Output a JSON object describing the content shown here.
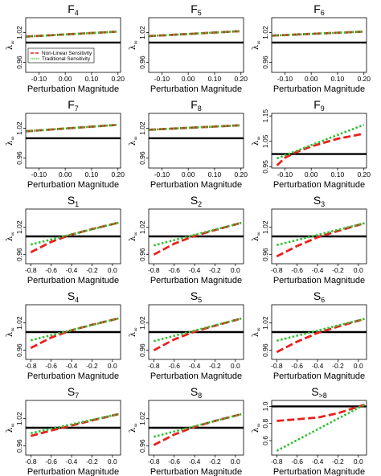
{
  "figure": {
    "xlabel": "Perturbation Magnitude",
    "ylabel_base": "λ",
    "ylabel_sub": "∞",
    "legend": {
      "entries": [
        {
          "label": "Non-Linear Sensitivity",
          "color": "#e8211c",
          "style": "dashed"
        },
        {
          "label": "Traditional Sensitivity",
          "color": "#2fbf2f",
          "style": "dotted"
        }
      ],
      "location": "inside panel F4, lower-left"
    },
    "reference_line": {
      "y": 1.0,
      "color": "#000000"
    }
  },
  "chart_data": [
    {
      "type": "line",
      "title": "F",
      "sub": "4",
      "xlim": [
        -0.15,
        0.21
      ],
      "ylim": [
        0.94,
        1.05
      ],
      "xticks": [
        -0.1,
        0.0,
        0.1,
        0.2
      ],
      "xtick_labels": [
        "-0.10",
        "0.00",
        "0.10",
        "0.20"
      ],
      "yticks": [
        0.96,
        1.02
      ],
      "ytick_labels": [
        "0.96",
        "1.02"
      ],
      "ref_y": 1.0,
      "show_legend": true,
      "series": [
        {
          "name": "Non-Linear Sensitivity",
          "x": [
            -0.15,
            0.2
          ],
          "y": [
            1.012,
            1.022
          ]
        },
        {
          "name": "Traditional Sensitivity",
          "x": [
            -0.15,
            0.2
          ],
          "y": [
            1.012,
            1.022
          ]
        }
      ]
    },
    {
      "type": "line",
      "title": "F",
      "sub": "5",
      "xlim": [
        -0.15,
        0.21
      ],
      "ylim": [
        0.94,
        1.05
      ],
      "xticks": [
        -0.1,
        0.0,
        0.1,
        0.2
      ],
      "xtick_labels": [
        "-0.10",
        "0.00",
        "0.10",
        "0.20"
      ],
      "yticks": [
        0.96,
        1.02
      ],
      "ytick_labels": [
        "0.96",
        "1.02"
      ],
      "ref_y": 1.0,
      "series": [
        {
          "name": "Non-Linear Sensitivity",
          "x": [
            -0.15,
            0.2
          ],
          "y": [
            1.013,
            1.023
          ]
        },
        {
          "name": "Traditional Sensitivity",
          "x": [
            -0.15,
            0.2
          ],
          "y": [
            1.013,
            1.023
          ]
        }
      ]
    },
    {
      "type": "line",
      "title": "F",
      "sub": "6",
      "xlim": [
        -0.15,
        0.21
      ],
      "ylim": [
        0.94,
        1.05
      ],
      "xticks": [
        -0.1,
        0.0,
        0.1,
        0.2
      ],
      "xtick_labels": [
        "-0.10",
        "0.00",
        "0.10",
        "0.20"
      ],
      "yticks": [
        0.96,
        1.02
      ],
      "ytick_labels": [
        "0.96",
        "1.02"
      ],
      "ref_y": 1.0,
      "series": [
        {
          "name": "Non-Linear Sensitivity",
          "x": [
            -0.15,
            0.2
          ],
          "y": [
            1.014,
            1.022
          ]
        },
        {
          "name": "Traditional Sensitivity",
          "x": [
            -0.15,
            0.2
          ],
          "y": [
            1.014,
            1.022
          ]
        }
      ]
    },
    {
      "type": "line",
      "title": "F",
      "sub": "7",
      "xlim": [
        -0.15,
        0.21
      ],
      "ylim": [
        0.94,
        1.05
      ],
      "xticks": [
        -0.1,
        0.0,
        0.1,
        0.2
      ],
      "xtick_labels": [
        "-0.10",
        "0.00",
        "0.10",
        "0.20"
      ],
      "yticks": [
        0.96,
        1.02
      ],
      "ytick_labels": [
        "0.96",
        "1.02"
      ],
      "ref_y": 1.0,
      "series": [
        {
          "name": "Non-Linear Sensitivity",
          "x": [
            -0.15,
            0.2
          ],
          "y": [
            1.014,
            1.027
          ]
        },
        {
          "name": "Traditional Sensitivity",
          "x": [
            -0.15,
            0.2
          ],
          "y": [
            1.014,
            1.027
          ]
        }
      ]
    },
    {
      "type": "line",
      "title": "F",
      "sub": "8",
      "xlim": [
        -0.15,
        0.21
      ],
      "ylim": [
        0.94,
        1.05
      ],
      "xticks": [
        -0.1,
        0.0,
        0.1,
        0.2
      ],
      "xtick_labels": [
        "-0.10",
        "0.00",
        "0.10",
        "0.20"
      ],
      "yticks": [
        0.96,
        1.02
      ],
      "ytick_labels": [
        "0.96",
        "1.02"
      ],
      "ref_y": 1.0,
      "series": [
        {
          "name": "Non-Linear Sensitivity",
          "x": [
            -0.15,
            0.2
          ],
          "y": [
            1.017,
            1.026
          ]
        },
        {
          "name": "Traditional Sensitivity",
          "x": [
            -0.15,
            0.2
          ],
          "y": [
            1.017,
            1.026
          ]
        }
      ]
    },
    {
      "type": "line",
      "title": "F",
      "sub": "9",
      "xlim": [
        -0.15,
        0.21
      ],
      "ylim": [
        0.945,
        1.16
      ],
      "xticks": [
        -0.1,
        0.0,
        0.1,
        0.2
      ],
      "xtick_labels": [
        "-0.10",
        "0.00",
        "0.10",
        "0.20"
      ],
      "yticks": [
        0.95,
        1.05,
        1.15
      ],
      "ytick_labels": [
        "0.95",
        "1.05",
        "1.15"
      ],
      "ref_y": 1.0,
      "series": [
        {
          "name": "Non-Linear Sensitivity",
          "x": [
            -0.13,
            -0.1,
            -0.06,
            0.0,
            0.1,
            0.2
          ],
          "y": [
            0.955,
            0.985,
            1.006,
            1.03,
            1.06,
            1.08
          ]
        },
        {
          "name": "Traditional Sensitivity",
          "x": [
            -0.13,
            0.2
          ],
          "y": [
            0.983,
            1.115
          ]
        }
      ]
    },
    {
      "type": "line",
      "title": "S",
      "sub": "1",
      "xlim": [
        -0.85,
        0.08
      ],
      "ylim": [
        0.94,
        1.06
      ],
      "xticks": [
        -0.8,
        -0.6,
        -0.4,
        -0.2,
        0.0
      ],
      "xtick_labels": [
        "-0.8",
        "-0.6",
        "-0.4",
        "-0.2",
        "0.0"
      ],
      "yticks": [
        0.96,
        1.02
      ],
      "ytick_labels": [
        "0.96",
        "1.02"
      ],
      "ref_y": 1.0,
      "series": [
        {
          "name": "Non-Linear Sensitivity",
          "x": [
            -0.8,
            -0.6,
            -0.4,
            -0.2,
            0.06
          ],
          "y": [
            0.965,
            0.988,
            1.004,
            1.016,
            1.03
          ]
        },
        {
          "name": "Traditional Sensitivity",
          "x": [
            -0.8,
            0.06
          ],
          "y": [
            0.982,
            1.03
          ]
        }
      ]
    },
    {
      "type": "line",
      "title": "S",
      "sub": "2",
      "xlim": [
        -0.85,
        0.08
      ],
      "ylim": [
        0.94,
        1.06
      ],
      "xticks": [
        -0.8,
        -0.6,
        -0.4,
        -0.2,
        0.0
      ],
      "xtick_labels": [
        "-0.8",
        "-0.6",
        "-0.4",
        "-0.2",
        "0.0"
      ],
      "yticks": [
        0.96,
        1.02
      ],
      "ytick_labels": [
        "0.96",
        "1.02"
      ],
      "ref_y": 1.0,
      "series": [
        {
          "name": "Non-Linear Sensitivity",
          "x": [
            -0.8,
            -0.6,
            -0.4,
            -0.2,
            0.06
          ],
          "y": [
            0.96,
            0.984,
            1.001,
            1.014,
            1.03
          ]
        },
        {
          "name": "Traditional Sensitivity",
          "x": [
            -0.8,
            0.06
          ],
          "y": [
            0.98,
            1.03
          ]
        }
      ]
    },
    {
      "type": "line",
      "title": "S",
      "sub": "3",
      "xlim": [
        -0.85,
        0.08
      ],
      "ylim": [
        0.94,
        1.06
      ],
      "xticks": [
        -0.8,
        -0.6,
        -0.4,
        -0.2,
        0.0
      ],
      "xtick_labels": [
        "-0.8",
        "-0.6",
        "-0.4",
        "-0.2",
        "0.0"
      ],
      "yticks": [
        0.96,
        1.02
      ],
      "ytick_labels": [
        "0.96",
        "1.02"
      ],
      "ref_y": 1.0,
      "series": [
        {
          "name": "Non-Linear Sensitivity",
          "x": [
            -0.8,
            -0.6,
            -0.4,
            -0.2,
            0.06
          ],
          "y": [
            0.956,
            0.979,
            0.998,
            1.012,
            1.029
          ]
        },
        {
          "name": "Traditional Sensitivity",
          "x": [
            -0.8,
            0.06
          ],
          "y": [
            0.981,
            1.029
          ]
        }
      ]
    },
    {
      "type": "line",
      "title": "S",
      "sub": "4",
      "xlim": [
        -0.85,
        0.08
      ],
      "ylim": [
        0.94,
        1.06
      ],
      "xticks": [
        -0.8,
        -0.6,
        -0.4,
        -0.2,
        0.0
      ],
      "xtick_labels": [
        "-0.8",
        "-0.6",
        "-0.4",
        "-0.2",
        "0.0"
      ],
      "yticks": [
        0.96,
        1.02
      ],
      "ytick_labels": [
        "0.96",
        "1.02"
      ],
      "ref_y": 1.0,
      "series": [
        {
          "name": "Non-Linear Sensitivity",
          "x": [
            -0.8,
            -0.6,
            -0.4,
            -0.2,
            0.06
          ],
          "y": [
            0.965,
            0.988,
            1.004,
            1.016,
            1.03
          ]
        },
        {
          "name": "Traditional Sensitivity",
          "x": [
            -0.8,
            0.06
          ],
          "y": [
            0.982,
            1.03
          ]
        }
      ]
    },
    {
      "type": "line",
      "title": "S",
      "sub": "5",
      "xlim": [
        -0.85,
        0.08
      ],
      "ylim": [
        0.94,
        1.06
      ],
      "xticks": [
        -0.8,
        -0.6,
        -0.4,
        -0.2,
        0.0
      ],
      "xtick_labels": [
        "-0.8",
        "-0.6",
        "-0.4",
        "-0.2",
        "0.0"
      ],
      "yticks": [
        0.96,
        1.02
      ],
      "ytick_labels": [
        "0.96",
        "1.02"
      ],
      "ref_y": 1.0,
      "series": [
        {
          "name": "Non-Linear Sensitivity",
          "x": [
            -0.8,
            -0.6,
            -0.4,
            -0.2,
            0.06
          ],
          "y": [
            0.96,
            0.984,
            1.001,
            1.014,
            1.03
          ]
        },
        {
          "name": "Traditional Sensitivity",
          "x": [
            -0.8,
            0.06
          ],
          "y": [
            0.98,
            1.03
          ]
        }
      ]
    },
    {
      "type": "line",
      "title": "S",
      "sub": "6",
      "xlim": [
        -0.85,
        0.08
      ],
      "ylim": [
        0.94,
        1.06
      ],
      "xticks": [
        -0.8,
        -0.6,
        -0.4,
        -0.2,
        0.0
      ],
      "xtick_labels": [
        "-0.8",
        "-0.6",
        "-0.4",
        "-0.2",
        "0.0"
      ],
      "yticks": [
        0.96,
        1.02
      ],
      "ytick_labels": [
        "0.96",
        "1.02"
      ],
      "ref_y": 1.0,
      "series": [
        {
          "name": "Non-Linear Sensitivity",
          "x": [
            -0.8,
            -0.6,
            -0.4,
            -0.2,
            0.06
          ],
          "y": [
            0.956,
            0.979,
            0.998,
            1.012,
            1.029
          ]
        },
        {
          "name": "Traditional Sensitivity",
          "x": [
            -0.8,
            0.06
          ],
          "y": [
            0.981,
            1.029
          ]
        }
      ]
    },
    {
      "type": "line",
      "title": "S",
      "sub": "7",
      "xlim": [
        -0.85,
        0.08
      ],
      "ylim": [
        0.94,
        1.06
      ],
      "xticks": [
        -0.8,
        -0.6,
        -0.4,
        -0.2,
        0.0
      ],
      "xtick_labels": [
        "-0.8",
        "-0.6",
        "-0.4",
        "-0.2",
        "0.0"
      ],
      "yticks": [
        0.96,
        1.02
      ],
      "ytick_labels": [
        "0.96",
        "1.02"
      ],
      "ref_y": 1.0,
      "series": [
        {
          "name": "Non-Linear Sensitivity",
          "x": [
            -0.8,
            -0.6,
            -0.4,
            -0.2,
            0.06
          ],
          "y": [
            0.982,
            0.994,
            1.005,
            1.016,
            1.03
          ]
        },
        {
          "name": "Traditional Sensitivity",
          "x": [
            -0.8,
            0.06
          ],
          "y": [
            0.988,
            1.03
          ]
        }
      ]
    },
    {
      "type": "line",
      "title": "S",
      "sub": "8",
      "xlim": [
        -0.85,
        0.08
      ],
      "ylim": [
        0.94,
        1.06
      ],
      "xticks": [
        -0.8,
        -0.6,
        -0.4,
        -0.2,
        0.0
      ],
      "xtick_labels": [
        "-0.8",
        "-0.6",
        "-0.4",
        "-0.2",
        "0.0"
      ],
      "yticks": [
        0.96,
        1.02
      ],
      "ytick_labels": [
        "0.96",
        "1.02"
      ],
      "ref_y": 1.0,
      "series": [
        {
          "name": "Non-Linear Sensitivity",
          "x": [
            -0.8,
            -0.6,
            -0.4,
            -0.2,
            0.06
          ],
          "y": [
            0.962,
            0.985,
            1.002,
            1.015,
            1.03
          ]
        },
        {
          "name": "Traditional Sensitivity",
          "x": [
            -0.8,
            0.06
          ],
          "y": [
            0.98,
            1.03
          ]
        }
      ]
    },
    {
      "type": "line",
      "title": "S",
      "sub": ">8",
      "xlim": [
        -0.85,
        0.08
      ],
      "ylim": [
        0.43,
        1.07
      ],
      "xticks": [
        -0.8,
        -0.6,
        -0.4,
        -0.2,
        0.0
      ],
      "xtick_labels": [
        "-0.8",
        "-0.6",
        "-0.4",
        "-0.2",
        "0.0"
      ],
      "yticks": [
        0.6,
        0.8,
        1.0
      ],
      "ytick_labels": [
        "0.6",
        "0.8",
        "1.0"
      ],
      "ref_y": 1.0,
      "series": [
        {
          "name": "Non-Linear Sensitivity",
          "x": [
            -0.8,
            -0.6,
            -0.4,
            -0.2,
            0.06
          ],
          "y": [
            0.83,
            0.85,
            0.87,
            0.92,
            1.02
          ]
        },
        {
          "name": "Traditional Sensitivity",
          "x": [
            -0.8,
            0.06
          ],
          "y": [
            0.48,
            1.02
          ]
        }
      ]
    }
  ]
}
